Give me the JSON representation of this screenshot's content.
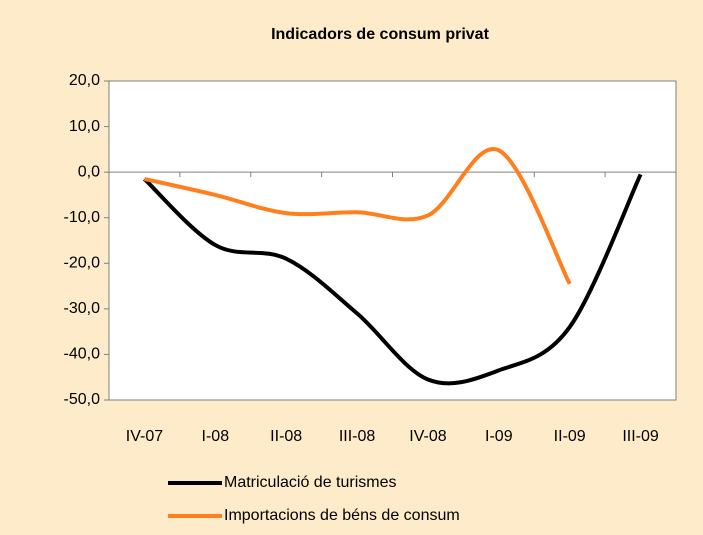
{
  "chart_data": {
    "type": "line",
    "title": "Indicadors de consum privat",
    "categories": [
      "IV-07",
      "I-08",
      "II-08",
      "III-08",
      "IV-08",
      "I-09",
      "II-09",
      "III-09"
    ],
    "series": [
      {
        "name": "Matriculació de turismes",
        "color": "#000000",
        "values": [
          -1.5,
          -16,
          -19,
          -31,
          -45.5,
          -43.5,
          -34,
          -0.5
        ]
      },
      {
        "name": "Importacions de béns de consum",
        "color": "#ff7f1e",
        "values": [
          -1.5,
          -5,
          -9,
          -8.8,
          -9.5,
          4.8,
          -24.5,
          null
        ]
      }
    ],
    "ylim": [
      -50,
      20
    ],
    "yticks": [
      {
        "value": -50,
        "label": "-50,0"
      },
      {
        "value": -40,
        "label": "-40,0"
      },
      {
        "value": -30,
        "label": "-30,0"
      },
      {
        "value": -20,
        "label": "-20,0"
      },
      {
        "value": -10,
        "label": "-10,0"
      },
      {
        "value": 0,
        "label": "0,0"
      },
      {
        "value": 10,
        "label": "10,0"
      },
      {
        "value": 20,
        "label": "20,0"
      }
    ],
    "grid": false,
    "smooth": true,
    "legend": "bottom"
  }
}
